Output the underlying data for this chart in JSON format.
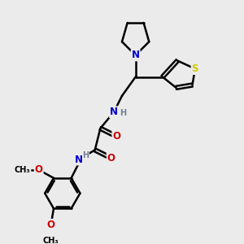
{
  "bg_color": "#ebebeb",
  "atom_colors": {
    "N": "#0000cc",
    "O": "#cc0000",
    "S": "#cccc00",
    "C": "#000000",
    "H": "#708090"
  },
  "bond_color": "#000000",
  "bond_width": 1.8,
  "font_size_atom": 8.5
}
